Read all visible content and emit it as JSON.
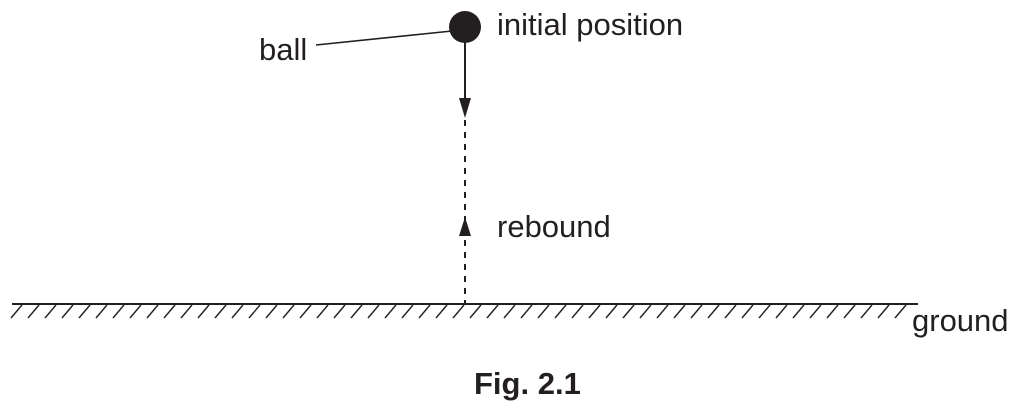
{
  "labels": {
    "ball": "ball",
    "initial_position": "initial position",
    "rebound": "rebound",
    "ground": "ground"
  },
  "caption": "Fig. 2.1",
  "colors": {
    "ink": "#231f20",
    "background": "#ffffff"
  }
}
